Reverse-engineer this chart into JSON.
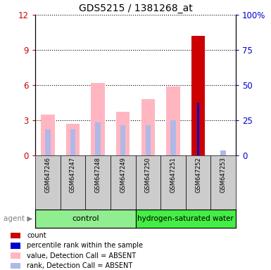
{
  "title": "GDS5215 / 1381268_at",
  "samples": [
    "GSM647246",
    "GSM647247",
    "GSM647248",
    "GSM647249",
    "GSM647250",
    "GSM647251",
    "GSM647252",
    "GSM647253"
  ],
  "value_absent": [
    3.5,
    2.7,
    6.2,
    3.7,
    4.8,
    5.9,
    0.0,
    0.0
  ],
  "rank_absent": [
    2.2,
    2.2,
    2.8,
    2.6,
    2.6,
    3.0,
    0.0,
    0.4
  ],
  "count_value": [
    0.0,
    0.0,
    0.0,
    0.0,
    0.0,
    0.0,
    10.2,
    0.0
  ],
  "percentile_rank_display": [
    0.0,
    0.0,
    0.0,
    0.0,
    0.0,
    0.0,
    4.5,
    0.0
  ],
  "ylim_left": [
    0,
    12
  ],
  "ylim_right": [
    0,
    100
  ],
  "yticks_left": [
    0,
    3,
    6,
    9,
    12
  ],
  "yticks_right": [
    0,
    25,
    50,
    75,
    100
  ],
  "ytick_labels_right": [
    "0",
    "25",
    "50",
    "75",
    "100%"
  ],
  "color_count": "#cc0000",
  "color_percentile": "#0000cc",
  "color_value_absent": "#ffb6c1",
  "color_rank_absent": "#b0b8e8",
  "bar_width": 0.55,
  "tick_color_left": "#cc0000",
  "tick_color_right": "#0000cc",
  "group_control_color": "#90EE90",
  "group_hw_color": "#44ee44",
  "sample_bg_color": "#cccccc",
  "legend_items": [
    {
      "label": "count",
      "color": "#cc0000"
    },
    {
      "label": "percentile rank within the sample",
      "color": "#0000cc"
    },
    {
      "label": "value, Detection Call = ABSENT",
      "color": "#ffb6c1"
    },
    {
      "label": "rank, Detection Call = ABSENT",
      "color": "#b0b8e8"
    }
  ]
}
